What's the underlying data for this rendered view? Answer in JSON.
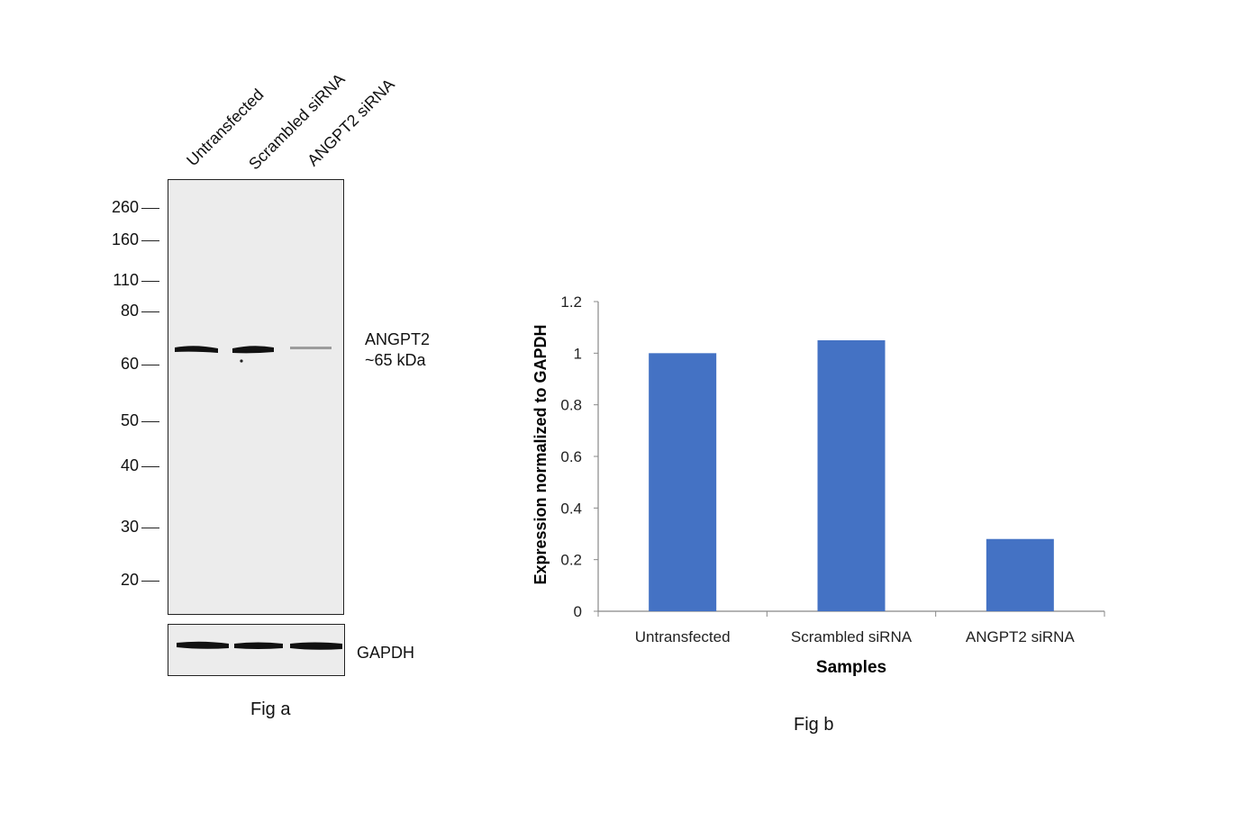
{
  "fig_a": {
    "caption": "Fig a",
    "lane_labels": [
      "Untransfected",
      "Scrambled siRNA",
      "ANGPT2 siRNA"
    ],
    "mw_markers": [
      "260",
      "160",
      "110",
      "80",
      "60",
      "50",
      "40",
      "30",
      "20"
    ],
    "band_label_line1": "ANGPT2",
    "band_label_line2": "~65 kDa",
    "loading_control_label": "GAPDH"
  },
  "fig_b": {
    "caption": "Fig b"
  },
  "chart_data": {
    "type": "bar",
    "categories": [
      "Untransfected",
      "Scrambled siRNA",
      "ANGPT2 siRNA"
    ],
    "values": [
      1.0,
      1.05,
      0.28
    ],
    "xlabel": "Samples",
    "ylabel": "Expression  normalized to GAPDH",
    "ylim": [
      0,
      1.2
    ],
    "yticks": [
      "0",
      "0.2",
      "0.4",
      "0.6",
      "0.8",
      "1",
      "1.2"
    ],
    "grid": false,
    "bar_color": "#4472C4"
  }
}
